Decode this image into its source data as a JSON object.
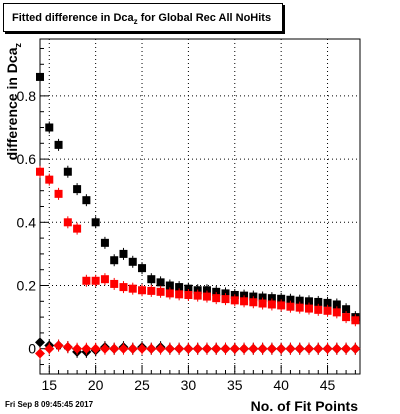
{
  "title_main": "Fitted difference in Dca",
  "title_sub": "z",
  "title_rest": " for Global Rec All NoHits",
  "footer_timestamp": "Fri Sep  8 09:45:45 2017",
  "colors": {
    "black_series": "#000000",
    "red_series": "#ff0000",
    "grid": "#000000"
  },
  "chart_data": {
    "type": "scatter",
    "xlabel": "No. of Fit Points",
    "ylabel": "difference in Dca",
    "ylabel_sub": "z",
    "xlim": [
      14,
      48.5
    ],
    "ylim": [
      -0.08,
      0.98
    ],
    "xticks": [
      15,
      20,
      25,
      30,
      35,
      40,
      45
    ],
    "yticks": [
      0,
      0.2,
      0.4,
      0.6,
      0.8
    ],
    "ytick_labels": [
      "0",
      "0.2",
      "0.4",
      "0.6",
      "0.8"
    ],
    "grid": true,
    "series": [
      {
        "marker": "square",
        "color": "#000000",
        "x": [
          14,
          15,
          16,
          17,
          18,
          19,
          20,
          21,
          22,
          23,
          24,
          25,
          26,
          27,
          28,
          29,
          30,
          31,
          32,
          33,
          34,
          35,
          36,
          37,
          38,
          39,
          40,
          41,
          42,
          43,
          44,
          45,
          46,
          47,
          48
        ],
        "y": [
          0.86,
          0.7,
          0.645,
          0.56,
          0.505,
          0.47,
          0.4,
          0.335,
          0.28,
          0.3,
          0.275,
          0.255,
          0.22,
          0.21,
          0.2,
          0.195,
          0.19,
          0.185,
          0.185,
          0.18,
          0.175,
          0.17,
          0.168,
          0.165,
          0.162,
          0.16,
          0.158,
          0.155,
          0.152,
          0.15,
          0.148,
          0.145,
          0.14,
          0.125,
          0.1
        ]
      },
      {
        "marker": "square",
        "color": "#ff0000",
        "x": [
          14,
          15,
          16,
          17,
          18,
          19,
          20,
          21,
          22,
          23,
          24,
          25,
          26,
          27,
          28,
          29,
          30,
          31,
          32,
          33,
          34,
          35,
          36,
          37,
          38,
          39,
          40,
          41,
          42,
          43,
          44,
          45,
          46,
          47,
          48
        ],
        "y": [
          0.56,
          0.535,
          0.49,
          0.4,
          0.38,
          0.215,
          0.215,
          0.22,
          0.205,
          0.195,
          0.19,
          0.185,
          0.183,
          0.18,
          0.175,
          0.172,
          0.17,
          0.168,
          0.165,
          0.16,
          0.157,
          0.153,
          0.15,
          0.147,
          0.143,
          0.14,
          0.137,
          0.133,
          0.13,
          0.127,
          0.123,
          0.12,
          0.115,
          0.1,
          0.09
        ]
      },
      {
        "marker": "diamond",
        "color": "#000000",
        "x": [
          14,
          15,
          16,
          17,
          18,
          19,
          20,
          21,
          22,
          23,
          24,
          25,
          26,
          27,
          28,
          29,
          30,
          31,
          32,
          33,
          34,
          35,
          36,
          37,
          38,
          39,
          40,
          41,
          42,
          43,
          44,
          45,
          46,
          47,
          48
        ],
        "y": [
          0.02,
          0.01,
          0.01,
          0.005,
          -0.01,
          -0.01,
          -0.005,
          0.005,
          0.0,
          0.005,
          0.0,
          0.005,
          0.0,
          0.005,
          0.0,
          0.0,
          0.0,
          0.0,
          0.0,
          0.0,
          0.0,
          0.0,
          0.0,
          0.0,
          0.0,
          0.0,
          0.0,
          0.0,
          0.0,
          0.0,
          0.0,
          0.0,
          0.0,
          0.0,
          0.0
        ]
      },
      {
        "marker": "diamond",
        "color": "#ff0000",
        "x": [
          14,
          15,
          16,
          17,
          18,
          19,
          20,
          21,
          22,
          23,
          24,
          25,
          26,
          27,
          28,
          29,
          30,
          31,
          32,
          33,
          34,
          35,
          36,
          37,
          38,
          39,
          40,
          41,
          42,
          43,
          44,
          45,
          46,
          47,
          48
        ],
        "y": [
          -0.015,
          0.0,
          0.01,
          0.005,
          0.0,
          0.0,
          0.0,
          0.0,
          0.0,
          0.0,
          0.0,
          0.0,
          0.0,
          0.0,
          0.0,
          0.0,
          0.0,
          0.0,
          0.0,
          0.0,
          0.0,
          0.0,
          0.0,
          0.0,
          0.0,
          0.0,
          0.0,
          0.0,
          0.0,
          0.0,
          0.0,
          0.0,
          0.0,
          0.0,
          0.0
        ]
      }
    ]
  }
}
